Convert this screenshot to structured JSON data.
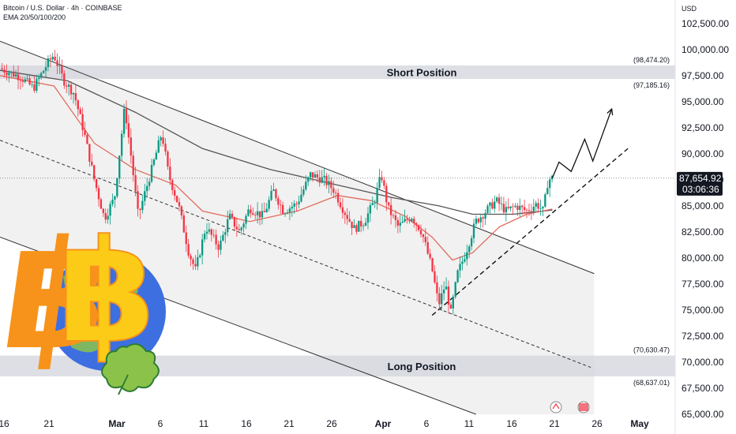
{
  "legend": {
    "symbol": "Bitcoin / U.S. Dollar · 4h · COINBASE",
    "indicator": "EMA 20/50/100/200"
  },
  "axis": {
    "currency": "USD"
  },
  "colors": {
    "up": "#089981",
    "down": "#f23645",
    "ema_fast": "#e06c5e",
    "ema_slow": "#555555",
    "zone": "#d1d4dc",
    "channel": "#ececec",
    "bitcoin_orange": "#f7931a",
    "bitcoin_yellow": "#fccb17",
    "globe_blue": "#3d6fe0",
    "leaf_green": "#8bc34a"
  },
  "chart_data": {
    "type": "candlestick",
    "title": "",
    "ylim": [
      65000,
      104000
    ],
    "y_ticks": [
      "102,500.00",
      "100,000.00",
      "97,500.00",
      "95,000.00",
      "92,500.00",
      "90,000.00",
      "87,500.00",
      "85,000.00",
      "82,500.00",
      "80,000.00",
      "77,500.00",
      "75,000.00",
      "72,500.00",
      "70,000.00",
      "67,500.00",
      "65,000.00"
    ],
    "x_ticks": [
      {
        "label": "16",
        "bold": false
      },
      {
        "label": "21",
        "bold": false
      },
      {
        "label": "Mar",
        "bold": true
      },
      {
        "label": "6",
        "bold": false
      },
      {
        "label": "11",
        "bold": false
      },
      {
        "label": "16",
        "bold": false
      },
      {
        "label": "21",
        "bold": false
      },
      {
        "label": "26",
        "bold": false
      },
      {
        "label": "Apr",
        "bold": true
      },
      {
        "label": "6",
        "bold": false
      },
      {
        "label": "11",
        "bold": false
      },
      {
        "label": "16",
        "bold": false
      },
      {
        "label": "21",
        "bold": false
      },
      {
        "label": "26",
        "bold": false
      },
      {
        "label": "May",
        "bold": true
      }
    ],
    "price_path": [
      [
        0,
        98200
      ],
      [
        0.03,
        97400
      ],
      [
        0.05,
        96300
      ],
      [
        0.07,
        98600
      ],
      [
        0.08,
        99500
      ],
      [
        0.095,
        97000
      ],
      [
        0.11,
        95800
      ],
      [
        0.125,
        92000
      ],
      [
        0.14,
        87500
      ],
      [
        0.155,
        83800
      ],
      [
        0.17,
        85800
      ],
      [
        0.185,
        94500
      ],
      [
        0.195,
        89500
      ],
      [
        0.205,
        84000
      ],
      [
        0.225,
        88500
      ],
      [
        0.24,
        92000
      ],
      [
        0.25,
        88000
      ],
      [
        0.265,
        85000
      ],
      [
        0.28,
        80500
      ],
      [
        0.29,
        78800
      ],
      [
        0.305,
        83000
      ],
      [
        0.325,
        81000
      ],
      [
        0.34,
        84000
      ],
      [
        0.355,
        82500
      ],
      [
        0.37,
        84800
      ],
      [
        0.39,
        84000
      ],
      [
        0.405,
        86500
      ],
      [
        0.42,
        84500
      ],
      [
        0.44,
        85200
      ],
      [
        0.46,
        88000
      ],
      [
        0.48,
        87500
      ],
      [
        0.495,
        86500
      ],
      [
        0.51,
        84500
      ],
      [
        0.525,
        82800
      ],
      [
        0.54,
        83500
      ],
      [
        0.555,
        85500
      ],
      [
        0.565,
        88000
      ],
      [
        0.575,
        84800
      ],
      [
        0.59,
        83000
      ],
      [
        0.61,
        84000
      ],
      [
        0.625,
        82500
      ],
      [
        0.64,
        79000
      ],
      [
        0.65,
        75500
      ],
      [
        0.66,
        77500
      ],
      [
        0.668,
        74700
      ],
      [
        0.678,
        78500
      ],
      [
        0.69,
        80500
      ],
      [
        0.705,
        83500
      ],
      [
        0.72,
        84500
      ],
      [
        0.735,
        85500
      ],
      [
        0.75,
        84500
      ],
      [
        0.765,
        85000
      ],
      [
        0.78,
        84500
      ],
      [
        0.795,
        85200
      ],
      [
        0.805,
        84500
      ],
      [
        0.812,
        87500
      ],
      [
        0.818,
        87654.92
      ]
    ],
    "ema_fast": [
      [
        0,
        97500
      ],
      [
        0.08,
        96500
      ],
      [
        0.14,
        91000
      ],
      [
        0.2,
        88500
      ],
      [
        0.26,
        87000
      ],
      [
        0.3,
        84500
      ],
      [
        0.37,
        83500
      ],
      [
        0.44,
        84500
      ],
      [
        0.5,
        86000
      ],
      [
        0.55,
        85500
      ],
      [
        0.6,
        84000
      ],
      [
        0.64,
        82000
      ],
      [
        0.67,
        79800
      ],
      [
        0.7,
        80500
      ],
      [
        0.74,
        83000
      ],
      [
        0.78,
        84200
      ],
      [
        0.818,
        84700
      ]
    ],
    "ema_slow": [
      [
        0,
        98000
      ],
      [
        0.1,
        97000
      ],
      [
        0.2,
        94000
      ],
      [
        0.3,
        90500
      ],
      [
        0.4,
        88500
      ],
      [
        0.5,
        87000
      ],
      [
        0.58,
        85800
      ],
      [
        0.65,
        85000
      ],
      [
        0.7,
        84200
      ],
      [
        0.76,
        84200
      ],
      [
        0.818,
        84600
      ]
    ],
    "channel": {
      "upper": [
        [
          0,
          100800
        ],
        [
          0.88,
          78500
        ]
      ],
      "mid": [
        [
          0,
          91300
        ],
        [
          0.875,
          69500
        ]
      ],
      "lower": [
        [
          0,
          82000
        ],
        [
          0.705,
          65000
        ]
      ],
      "end_x": 0.88
    },
    "trendline": [
      [
        0.64,
        74500
      ],
      [
        0.93,
        90500
      ]
    ],
    "projection": [
      [
        0.818,
        87654.92
      ],
      [
        0.828,
        89200
      ],
      [
        0.846,
        88300
      ],
      [
        0.866,
        91400
      ],
      [
        0.878,
        89300
      ],
      [
        0.906,
        94300
      ]
    ],
    "short_zone": {
      "label": "Short Position",
      "high": "(98,474.20)",
      "low": "(97,185.16)",
      "high_val": 98474.2,
      "low_val": 97185.16
    },
    "long_zone": {
      "label": "Long Position",
      "high": "(70,630.47)",
      "low": "(68,637.01)",
      "high_val": 70630.47,
      "low_val": 68637.01
    },
    "last_price": {
      "value": "87,654.92",
      "countdown": "03:06:36",
      "raw": 87654.92
    }
  }
}
